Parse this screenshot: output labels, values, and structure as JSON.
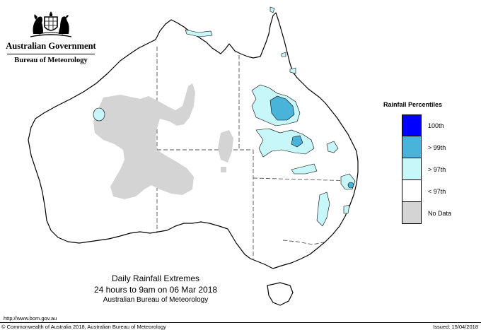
{
  "header": {
    "government": "Australian Government",
    "bureau": "Bureau of Meteorology",
    "crest_icon": "commonwealth-coat-of-arms-icon"
  },
  "legend": {
    "title": "Rainfall Percentiles",
    "items": [
      {
        "label": "100th",
        "color": "#0000ff"
      },
      {
        "label": "> 99th",
        "color": "#4ab3d9"
      },
      {
        "label": "> 97th",
        "color": "#c8f7f9"
      },
      {
        "label": "< 97th",
        "color": "#ffffff"
      },
      {
        "label": "No Data",
        "color": "#d4d4d4"
      }
    ]
  },
  "caption": {
    "line1": "Daily Rainfall Extremes",
    "line2": "24 hours to 9am on 06 Mar 2018",
    "line3": "Australian Bureau of Meteorology"
  },
  "footer": {
    "url": "http://www.bom.gov.au",
    "copyright": "© Commonwealth of Australia 2018, Australian Bureau of Meteorology",
    "issued": "Issued: 15/04/2018"
  },
  "map": {
    "colors": {
      "outline": "#000000",
      "borders": "#555555",
      "no_data": "#d4d4d4",
      "above_97": "#c8f7f9",
      "above_99": "#4ab3d9"
    }
  }
}
